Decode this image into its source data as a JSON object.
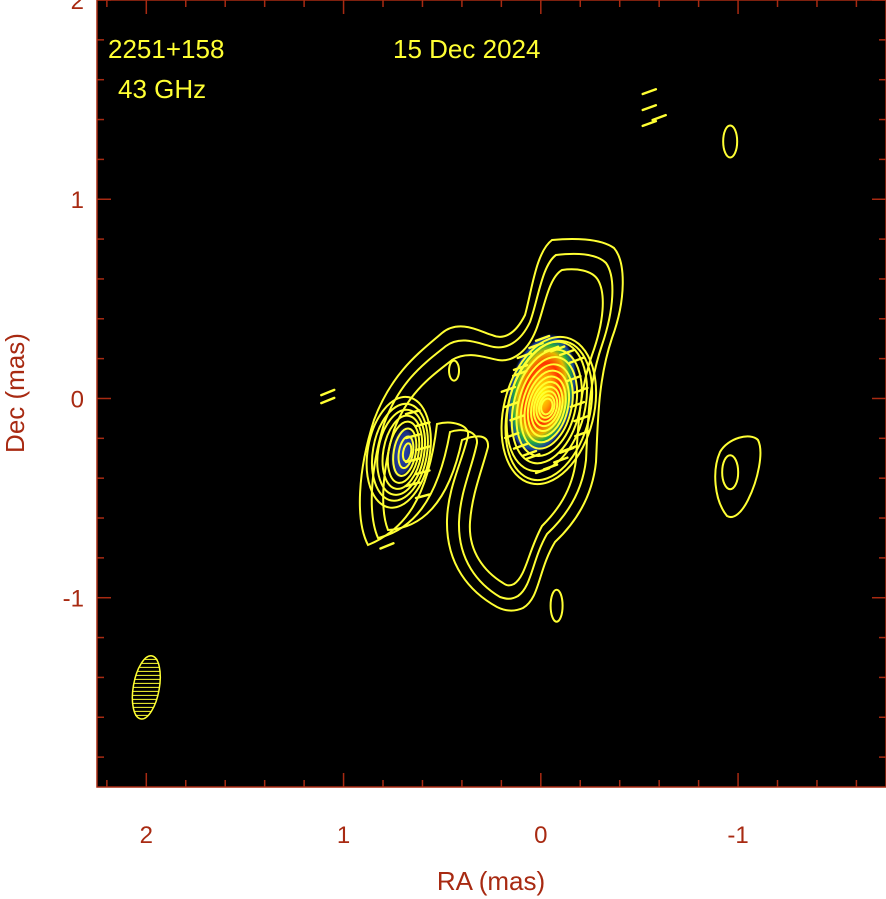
{
  "chart_data": {
    "type": "contour",
    "source_name": "2251+158",
    "frequency": "43 GHz",
    "date": "15 Dec 2024",
    "xlabel": "RA (mas)",
    "ylabel": "Dec (mas)",
    "xlim": [
      2.25,
      -1.75
    ],
    "ylim": [
      -1.95,
      2.0
    ],
    "x_ticks": [
      2,
      1,
      0,
      -1
    ],
    "x_tick_labels": [
      "2",
      "1",
      "0",
      "-1"
    ],
    "y_ticks": [
      2,
      1,
      0,
      -1
    ],
    "y_tick_labels": [
      "2",
      "1",
      "0",
      "-1"
    ],
    "background_color": "#000000",
    "axis_color": "#a82a12",
    "contour_color": "#ffff33",
    "core": {
      "ra": 0.0,
      "dec": 0.0
    },
    "knot": {
      "ra": 0.7,
      "dec": -0.27
    },
    "beam": {
      "ra": 2.0,
      "dec": -1.45
    }
  }
}
